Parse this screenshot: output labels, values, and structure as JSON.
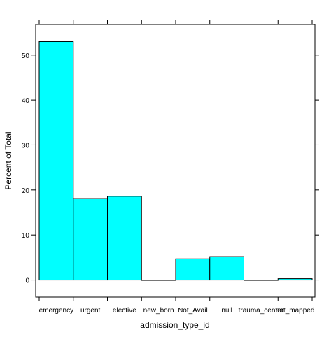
{
  "chart_data": {
    "type": "bar",
    "xlabel": "admission_type_id",
    "ylabel": "Percent of Total",
    "categories": [
      "emergency",
      "urgent",
      "elective",
      "new_born",
      "Not_Avail",
      "null",
      "trauma_center",
      "not_mapped"
    ],
    "values": [
      53.0,
      18.1,
      18.6,
      0.0,
      4.7,
      5.2,
      0.0,
      0.3
    ],
    "ylim": [
      -3.8,
      56.8
    ],
    "yticks": [
      0,
      10,
      20,
      30,
      40,
      50
    ],
    "grid": false,
    "legend": "none",
    "bar_fill": "#00ffff",
    "bar_stroke": "#000000"
  }
}
